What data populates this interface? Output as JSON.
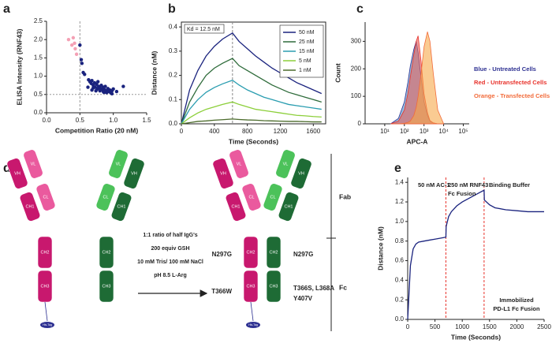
{
  "chart_data": [
    {
      "type": "scatter",
      "panel": "a",
      "xlabel": "Competition Ratio (20 nM)",
      "ylabel": "ELISA Intensity (RNF43)",
      "xlim": [
        0,
        1.5
      ],
      "xticks": [
        {
          "value": 0,
          "label": "0.0"
        },
        {
          "value": 0.5,
          "label": "0.5"
        },
        {
          "value": 1,
          "label": "1.0"
        },
        {
          "value": 1.5,
          "label": "1.5"
        }
      ],
      "ylim": [
        0,
        2.5
      ],
      "yticks": [
        {
          "value": 0,
          "label": "0.0"
        },
        {
          "value": 0.5,
          "label": "0.5"
        },
        {
          "value": 1,
          "label": "1.0"
        },
        {
          "value": 1.5,
          "label": "1.5"
        },
        {
          "value": 2,
          "label": "2.0"
        },
        {
          "value": 2.5,
          "label": "2.5"
        }
      ],
      "ref_x": [
        0.5
      ],
      "ref_y": [
        0.5
      ],
      "ref_color": "#999999",
      "series": [
        {
          "color": "#f4a0b4",
          "x": [
            0.33,
            0.4,
            0.38,
            0.43,
            0.45,
            0.42
          ],
          "values": [
            2.0,
            2.05,
            1.85,
            1.75,
            1.6,
            1.9
          ]
        },
        {
          "color": "#1a237e",
          "x": [
            0.5,
            0.52,
            0.53,
            0.55,
            0.57,
            0.63,
            0.65,
            0.67,
            0.68,
            0.7,
            0.72,
            0.73,
            0.75,
            0.76,
            0.78,
            0.8,
            0.8,
            0.82,
            0.83,
            0.85,
            0.85,
            0.87,
            0.88,
            0.9,
            0.9,
            0.92,
            0.93,
            0.95,
            0.96,
            0.98,
            1.0,
            1.05,
            1.15,
            0.62,
            0.7,
            0.77,
            0.68,
            0.74,
            0.86,
            0.98
          ],
          "values": [
            1.85,
            1.45,
            1.35,
            1.1,
            1.05,
            0.9,
            0.85,
            0.8,
            0.88,
            0.75,
            0.82,
            0.7,
            0.78,
            0.65,
            0.72,
            0.68,
            0.6,
            0.75,
            0.65,
            0.7,
            0.58,
            0.63,
            0.72,
            0.6,
            0.55,
            0.66,
            0.58,
            0.62,
            0.55,
            0.6,
            0.65,
            0.58,
            0.72,
            0.7,
            0.68,
            0.85,
            0.62,
            0.6,
            0.56,
            0.52
          ]
        }
      ]
    },
    {
      "type": "line",
      "panel": "b",
      "xlabel": "Time (Seconds)",
      "ylabel": "Distance (nM)",
      "frame": "box",
      "annotation": "Kd = 12.5 nM",
      "legend": "upper right",
      "xlim": [
        0,
        1750
      ],
      "xticks": [
        0,
        400,
        800,
        1200,
        1600
      ],
      "ylim": [
        0,
        0.42
      ],
      "yticks": [
        {
          "value": 0,
          "label": "0.0"
        },
        {
          "value": 0.1,
          "label": "0.1"
        },
        {
          "value": 0.2,
          "label": "0.2"
        },
        {
          "value": 0.3,
          "label": "0.3"
        },
        {
          "value": 0.4,
          "label": "0.4"
        }
      ],
      "ref_x": [
        620
      ],
      "ref_color": "#888888",
      "x": [
        0,
        100,
        200,
        300,
        400,
        500,
        620,
        700,
        800,
        900,
        1000,
        1100,
        1200,
        1300,
        1400,
        1500,
        1600,
        1700
      ],
      "series": [
        {
          "name": "50 nM",
          "color": "#1a237e",
          "values": [
            0,
            0.14,
            0.22,
            0.28,
            0.32,
            0.35,
            0.375,
            0.34,
            0.31,
            0.28,
            0.255,
            0.23,
            0.21,
            0.19,
            0.17,
            0.155,
            0.14,
            0.125
          ]
        },
        {
          "name": "25 nM",
          "color": "#2e6b3a",
          "values": [
            0,
            0.09,
            0.15,
            0.2,
            0.23,
            0.25,
            0.27,
            0.24,
            0.22,
            0.2,
            0.18,
            0.16,
            0.145,
            0.13,
            0.12,
            0.11,
            0.1,
            0.09
          ]
        },
        {
          "name": "15 nM",
          "color": "#2a9db0",
          "values": [
            0,
            0.06,
            0.1,
            0.13,
            0.15,
            0.165,
            0.18,
            0.16,
            0.14,
            0.125,
            0.11,
            0.1,
            0.09,
            0.08,
            0.075,
            0.07,
            0.065,
            0.06
          ]
        },
        {
          "name": "5 nM",
          "color": "#8ccf3a",
          "values": [
            0,
            0.025,
            0.045,
            0.06,
            0.07,
            0.08,
            0.09,
            0.08,
            0.07,
            0.06,
            0.055,
            0.05,
            0.045,
            0.04,
            0.035,
            0.033,
            0.03,
            0.028
          ]
        },
        {
          "name": "1 nM",
          "color": "#4b6b2b",
          "values": [
            0,
            0.005,
            0.01,
            0.012,
            0.015,
            0.017,
            0.02,
            0.018,
            0.016,
            0.015,
            0.013,
            0.012,
            0.011,
            0.01,
            0.01,
            0.009,
            0.008,
            0.008
          ]
        }
      ]
    },
    {
      "type": "area",
      "panel": "c",
      "xlabel": "APC-A",
      "ylabel": "Count",
      "log_x": true,
      "legend": "right",
      "xlim": [
        1,
        200000
      ],
      "xticks": [
        {
          "value": 10,
          "label": "10¹"
        },
        {
          "value": 100,
          "label": "10²"
        },
        {
          "value": 1000,
          "label": "10³"
        },
        {
          "value": 10000,
          "label": "10⁴"
        },
        {
          "value": 100000,
          "label": "10⁵"
        }
      ],
      "ylim": [
        0,
        370
      ],
      "yticks": [
        0,
        100,
        200,
        300
      ],
      "x": [
        20,
        50,
        100,
        150,
        200,
        300,
        400,
        500,
        700,
        1000,
        1500,
        2000,
        3000,
        5000,
        10000
      ],
      "series": [
        {
          "name": "Blue - Untreated Cells",
          "color": "#2e3192",
          "fill": "#4a90c8",
          "values": [
            0,
            20,
            80,
            150,
            210,
            270,
            300,
            260,
            170,
            80,
            30,
            10,
            3,
            0,
            0
          ]
        },
        {
          "name": "Red - Untransfected Cells",
          "color": "#e8322b",
          "fill": "#e8625b",
          "values": [
            0,
            10,
            50,
            110,
            170,
            250,
            300,
            320,
            230,
            110,
            40,
            12,
            3,
            0,
            0
          ]
        },
        {
          "name": "Orange - Transfected Cells",
          "color": "#f26b3a",
          "fill": "#f7a84a",
          "values": [
            0,
            0,
            2,
            5,
            10,
            30,
            60,
            100,
            180,
            280,
            335,
            300,
            180,
            50,
            0
          ]
        }
      ]
    },
    {
      "type": "line",
      "panel": "e",
      "xlabel": "Time (Seconds)",
      "ylabel": "Distance (nM)",
      "annotations": [
        "50 nM AC-1",
        "250 nM RNF43",
        "Fc Fusion",
        "Binding Buffer",
        "Immobilized",
        "PD-L1 Fc Fusion"
      ],
      "xlim": [
        0,
        2500
      ],
      "xticks": [
        0,
        500,
        1000,
        1500,
        2000,
        2500
      ],
      "ylim": [
        0,
        1.45
      ],
      "yticks": [
        {
          "value": 0,
          "label": "0.0"
        },
        {
          "value": 0.2,
          "label": "0.2"
        },
        {
          "value": 0.4,
          "label": "0.4"
        },
        {
          "value": 0.6,
          "label": "0.6"
        },
        {
          "value": 0.8,
          "label": "0.8"
        },
        {
          "value": 1,
          "label": "1.0"
        },
        {
          "value": 1.2,
          "label": "1.2"
        },
        {
          "value": 1.4,
          "label": "1.4"
        }
      ],
      "ref_x": [
        700,
        1400
      ],
      "ref_color": "#e8322b",
      "x": [
        0,
        50,
        100,
        150,
        200,
        300,
        400,
        500,
        600,
        700,
        705,
        750,
        800,
        900,
        1000,
        1100,
        1200,
        1300,
        1400,
        1405,
        1500,
        1600,
        1800,
        2000,
        2200,
        2500
      ],
      "series": [
        {
          "color": "#1a237e",
          "values": [
            0,
            0.55,
            0.72,
            0.77,
            0.79,
            0.8,
            0.81,
            0.82,
            0.83,
            0.84,
            0.95,
            1.05,
            1.1,
            1.16,
            1.2,
            1.23,
            1.26,
            1.29,
            1.32,
            1.22,
            1.17,
            1.14,
            1.12,
            1.11,
            1.1,
            1.1
          ]
        }
      ]
    }
  ],
  "diagram": {
    "panel": "d",
    "domains": [
      "VH",
      "CH1",
      "CH2",
      "CH3",
      "VL",
      "CL"
    ],
    "tag": "His-Tag",
    "conditions": [
      "1:1 ratio of half IgG's",
      "200 equiv GSH",
      "10 mM Tris/ 100 mM NaCl",
      "pH 8.5 L-Arg"
    ],
    "mutations": [
      "N297G",
      "N297G",
      "T366W",
      "T366S, L368A",
      "Y407V"
    ],
    "regions": [
      "Fab",
      "Fc"
    ]
  }
}
